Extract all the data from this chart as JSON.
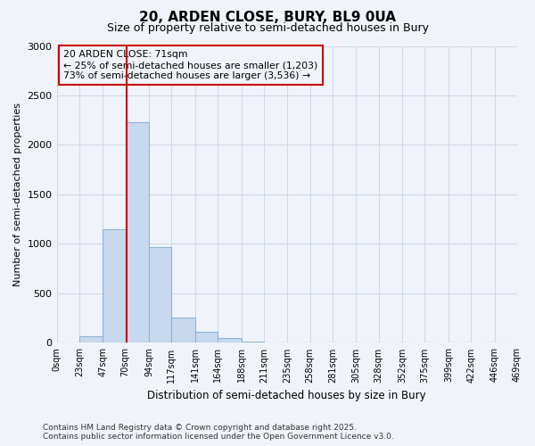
{
  "title": "20, ARDEN CLOSE, BURY, BL9 0UA",
  "subtitle": "Size of property relative to semi-detached houses in Bury",
  "xlabel": "Distribution of semi-detached houses by size in Bury",
  "ylabel": "Number of semi-detached properties",
  "footer_line1": "Contains HM Land Registry data © Crown copyright and database right 2025.",
  "footer_line2": "Contains public sector information licensed under the Open Government Licence v3.0.",
  "annotation_line1": "20 ARDEN CLOSE: 71sqm",
  "annotation_line2": "← 25% of semi-detached houses are smaller (1,203)",
  "annotation_line3": "73% of semi-detached houses are larger (3,536) →",
  "property_size": 71,
  "bar_edges": [
    0,
    23,
    47,
    70,
    94,
    117,
    141,
    164,
    188,
    211,
    235,
    258,
    281,
    305,
    328,
    352,
    375,
    399,
    422,
    446,
    469
  ],
  "bar_heights": [
    0,
    70,
    1150,
    2230,
    970,
    260,
    110,
    50,
    15,
    8,
    4,
    2,
    1,
    0,
    0,
    0,
    0,
    0,
    0,
    0
  ],
  "bar_color": "#c8d8ee",
  "bar_edge_color": "#8ab4d8",
  "property_line_color": "#cc0000",
  "annotation_box_color": "#cc0000",
  "grid_color": "#d0d8e8",
  "background_color": "#f0f4fa",
  "plot_bg_color": "#f0f4fa",
  "ylim": [
    0,
    3000
  ],
  "yticks": [
    0,
    500,
    1000,
    1500,
    2000,
    2500,
    3000
  ]
}
